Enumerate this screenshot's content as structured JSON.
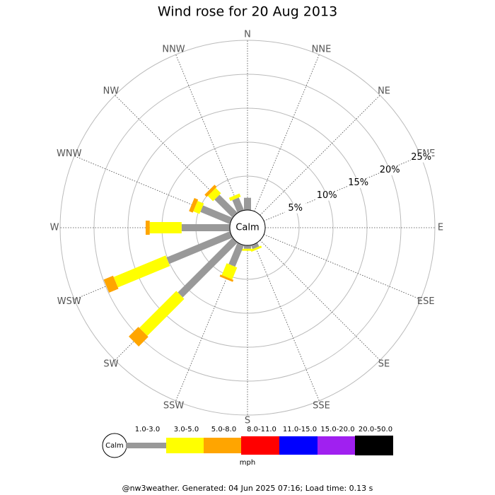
{
  "chart_data": {
    "type": "windrose",
    "title": "Wind rose for 20 Aug 2013",
    "directions": [
      "N",
      "NNE",
      "NE",
      "ENE",
      "E",
      "ESE",
      "SE",
      "SSE",
      "S",
      "SSW",
      "SW",
      "WSW",
      "W",
      "WNW",
      "NW",
      "NNW"
    ],
    "calm_label": "Calm",
    "unit_label": "mph",
    "rlim": [
      0,
      25
    ],
    "rticks": [
      {
        "value": 5,
        "label": "5%"
      },
      {
        "value": 10,
        "label": "10%"
      },
      {
        "value": 15,
        "label": "15%"
      },
      {
        "value": 20,
        "label": "20%"
      },
      {
        "value": 25,
        "label": "25%"
      }
    ],
    "series": [
      {
        "name": "1.0-3.0",
        "color": "#999999",
        "values": [
          1.8,
          0,
          0,
          0,
          0,
          0,
          0,
          0.6,
          0.5,
          3.4,
          11.4,
          10.1,
          7.1,
          4.7,
          3.75,
          2.0
        ]
      },
      {
        "name": "3.0-5.0",
        "color": "#ffff00",
        "values": [
          0,
          0,
          0,
          0,
          0,
          0,
          0,
          0.3,
          0.3,
          1.9,
          7.7,
          8.3,
          4.7,
          1.0,
          1.1,
          0.5
        ]
      },
      {
        "name": "5.0-8.0",
        "color": "#ffa500",
        "values": [
          0,
          0,
          0,
          0,
          0,
          0,
          0,
          0,
          0,
          0.3,
          2.0,
          1.5,
          0.6,
          0.6,
          0.45,
          0
        ]
      },
      {
        "name": "8.0-11.0",
        "color": "#ff0000",
        "values": [
          0,
          0,
          0,
          0,
          0,
          0,
          0,
          0,
          0,
          0,
          0,
          0,
          0,
          0,
          0,
          0
        ]
      },
      {
        "name": "11.0-15.0",
        "color": "#0000ff",
        "values": [
          0,
          0,
          0,
          0,
          0,
          0,
          0,
          0,
          0,
          0,
          0,
          0,
          0,
          0,
          0,
          0
        ]
      },
      {
        "name": "15.0-20.0",
        "color": "#a020f0",
        "values": [
          0,
          0,
          0,
          0,
          0,
          0,
          0,
          0,
          0,
          0,
          0,
          0,
          0,
          0,
          0,
          0
        ]
      },
      {
        "name": "20.0-50.0",
        "color": "#000000",
        "values": [
          0,
          0,
          0,
          0,
          0,
          0,
          0,
          0,
          0,
          0,
          0,
          0,
          0,
          0,
          0,
          0
        ]
      }
    ],
    "footer": "@nw3weather. Generated: 04 Jun 2025 07:16; Load time: 0.13 s"
  }
}
